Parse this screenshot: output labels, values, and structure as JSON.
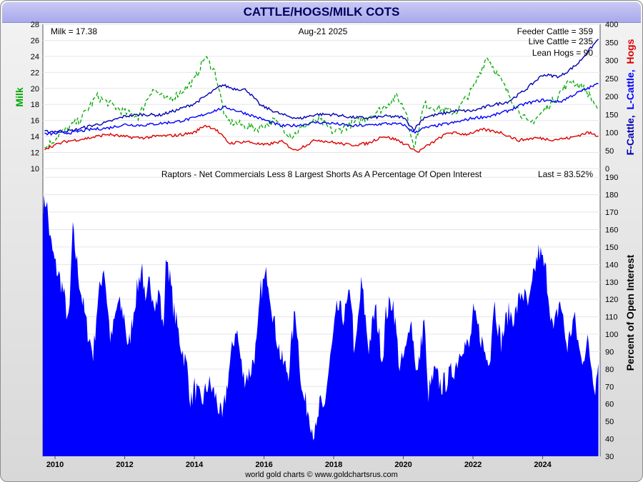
{
  "title": "CATTLE/HOGS/MILK COTS",
  "credit": "world gold charts © www.goldchartsrus.com",
  "colors": {
    "milk": "#00a800",
    "feeder_cattle": "#0000b0",
    "live_cattle": "#0000ff",
    "lean_hogs": "#dd0000",
    "cot_fill": "#0000ff",
    "title_text": "#000060"
  },
  "chart_data": [
    {
      "type": "line",
      "date_label": "Aug-21  2025",
      "readouts": {
        "milk": "Milk = 17.38",
        "feeder_cattle": "Feeder Cattle = 359",
        "live_cattle": "Live Cattle = 235",
        "lean_hogs": "Lean Hogs = 90"
      },
      "ylabel_left": "Milk",
      "ylabel_right": {
        "f_cattle": "F-Cattle,",
        "l_cattle": "L-Cattle,",
        "hogs": "Hogs"
      },
      "ylim_left": [
        10,
        28
      ],
      "yticks_left": [
        10,
        12,
        14,
        16,
        18,
        20,
        22,
        24,
        26,
        28
      ],
      "ylim_right": [
        0,
        400
      ],
      "yticks_right": [
        0,
        50,
        100,
        150,
        200,
        250,
        300,
        350,
        400
      ],
      "xlim": [
        2009.65,
        2025.65
      ],
      "series": [
        {
          "name": "Milk",
          "axis": "left",
          "color_key": "milk",
          "x": [
            2009.7,
            2010.2,
            2010.7,
            2011.2,
            2011.6,
            2012.0,
            2012.4,
            2012.8,
            2013.2,
            2013.6,
            2014.0,
            2014.3,
            2014.6,
            2014.9,
            2015.3,
            2015.8,
            2016.3,
            2016.8,
            2017.2,
            2017.6,
            2018.0,
            2018.5,
            2019.0,
            2019.4,
            2019.8,
            2020.1,
            2020.3,
            2020.6,
            2021.0,
            2021.5,
            2022.0,
            2022.4,
            2022.8,
            2023.2,
            2023.6,
            2024.0,
            2024.4,
            2024.8,
            2025.2,
            2025.6
          ],
          "values": [
            12.5,
            14.5,
            16,
            19,
            18,
            17,
            16.5,
            20,
            18.5,
            19.5,
            21,
            24,
            22,
            16,
            15.5,
            15,
            16,
            14,
            15.5,
            16,
            14.5,
            15.5,
            16.5,
            17.5,
            19,
            17,
            12.5,
            18,
            17.5,
            17,
            20,
            24,
            21,
            18,
            15.5,
            17,
            19,
            21,
            20,
            17.4
          ]
        },
        {
          "name": "Feeder Cattle",
          "axis": "right",
          "color_key": "feeder_cattle",
          "x": [
            2009.7,
            2010.5,
            2011.0,
            2011.5,
            2012.0,
            2012.5,
            2013.0,
            2013.5,
            2014.0,
            2014.5,
            2014.8,
            2015.1,
            2015.5,
            2015.9,
            2016.5,
            2017.0,
            2017.5,
            2018.0,
            2018.5,
            2019.0,
            2019.5,
            2020.0,
            2020.3,
            2020.6,
            2021.0,
            2021.5,
            2022.0,
            2022.5,
            2023.0,
            2023.5,
            2024.0,
            2024.5,
            2025.0,
            2025.6
          ],
          "values": [
            102,
            105,
            118,
            128,
            145,
            150,
            148,
            162,
            180,
            212,
            232,
            222,
            218,
            175,
            150,
            138,
            150,
            150,
            142,
            140,
            145,
            142,
            108,
            142,
            150,
            160,
            160,
            175,
            185,
            218,
            260,
            255,
            290,
            359
          ]
        },
        {
          "name": "Live Cattle",
          "axis": "right",
          "color_key": "live_cattle",
          "x": [
            2009.7,
            2010.5,
            2011.0,
            2011.5,
            2012.0,
            2012.5,
            2013.0,
            2013.5,
            2014.0,
            2014.5,
            2014.9,
            2015.5,
            2016.0,
            2016.5,
            2017.0,
            2017.5,
            2018.0,
            2018.5,
            2019.0,
            2019.5,
            2020.0,
            2020.3,
            2020.6,
            2021.0,
            2021.5,
            2022.0,
            2022.5,
            2023.0,
            2023.5,
            2024.0,
            2024.5,
            2025.0,
            2025.6
          ],
          "values": [
            95,
            100,
            108,
            112,
            122,
            120,
            125,
            130,
            140,
            158,
            170,
            152,
            135,
            118,
            120,
            128,
            125,
            118,
            120,
            125,
            122,
            100,
            112,
            120,
            128,
            140,
            145,
            160,
            180,
            190,
            185,
            210,
            235
          ]
        },
        {
          "name": "Lean Hogs",
          "axis": "right",
          "color_key": "lean_hogs",
          "x": [
            2009.7,
            2010.3,
            2011.0,
            2011.5,
            2012.0,
            2012.5,
            2013.0,
            2013.5,
            2014.0,
            2014.3,
            2014.6,
            2015.0,
            2015.5,
            2016.0,
            2016.5,
            2016.9,
            2017.5,
            2018.0,
            2018.5,
            2019.0,
            2019.4,
            2019.8,
            2020.2,
            2020.4,
            2020.8,
            2021.3,
            2021.8,
            2022.3,
            2022.8,
            2023.3,
            2023.8,
            2024.3,
            2024.8,
            2025.3,
            2025.6
          ],
          "values": [
            55,
            75,
            85,
            95,
            88,
            85,
            90,
            92,
            100,
            120,
            110,
            70,
            75,
            65,
            75,
            50,
            80,
            72,
            65,
            70,
            90,
            80,
            60,
            45,
            70,
            100,
            95,
            108,
            100,
            78,
            85,
            80,
            85,
            100,
            90
          ]
        }
      ]
    },
    {
      "type": "area",
      "title": "Raptors - Net Commercials Less 8 Largest Shorts As A Percentage Of Open Interest",
      "last_label": "Last = 83.52%",
      "ylabel": "Percent of Open Interest",
      "ylim": [
        30,
        195
      ],
      "yticks": [
        30,
        40,
        50,
        60,
        70,
        80,
        90,
        100,
        110,
        120,
        130,
        140,
        150,
        160,
        170,
        180,
        190
      ],
      "xlim": [
        2009.65,
        2025.65
      ],
      "xticks": [
        "2010",
        "2012",
        "2014",
        "2016",
        "2018",
        "2020",
        "2022",
        "2024"
      ],
      "xtick_values": [
        2010,
        2012,
        2014,
        2016,
        2018,
        2020,
        2022,
        2024
      ],
      "series": [
        {
          "name": "Raptors",
          "color_key": "cot_fill",
          "x": [
            2009.65,
            2009.75,
            2009.85,
            2010.0,
            2010.2,
            2010.4,
            2010.5,
            2010.7,
            2010.9,
            2011.1,
            2011.2,
            2011.4,
            2011.6,
            2011.8,
            2012.0,
            2012.1,
            2012.3,
            2012.5,
            2012.6,
            2012.7,
            2012.9,
            2013.0,
            2013.1,
            2013.2,
            2013.4,
            2013.6,
            2013.8,
            2013.9,
            2014.0,
            2014.2,
            2014.4,
            2014.6,
            2014.8,
            2015.0,
            2015.2,
            2015.4,
            2015.6,
            2015.8,
            2015.9,
            2016.1,
            2016.3,
            2016.5,
            2016.7,
            2016.9,
            2017.1,
            2017.3,
            2017.4,
            2017.5,
            2017.6,
            2017.7,
            2017.9,
            2018.1,
            2018.3,
            2018.5,
            2018.6,
            2018.8,
            2019.0,
            2019.2,
            2019.4,
            2019.5,
            2019.7,
            2019.9,
            2020.1,
            2020.2,
            2020.4,
            2020.6,
            2020.7,
            2020.9,
            2021.1,
            2021.3,
            2021.5,
            2021.7,
            2021.9,
            2022.0,
            2022.2,
            2022.4,
            2022.5,
            2022.6,
            2022.8,
            2023.0,
            2023.2,
            2023.4,
            2023.6,
            2023.8,
            2023.9,
            2024.1,
            2024.3,
            2024.5,
            2024.7,
            2024.9,
            2025.1,
            2025.3,
            2025.5,
            2025.6
          ],
          "values": [
            172,
            178,
            155,
            140,
            128,
            105,
            160,
            130,
            105,
            88,
            115,
            140,
            95,
            118,
            110,
            90,
            120,
            140,
            112,
            130,
            118,
            125,
            100,
            148,
            115,
            95,
            80,
            60,
            70,
            60,
            72,
            65,
            50,
            80,
            105,
            75,
            78,
            95,
            125,
            135,
            105,
            85,
            78,
            115,
            65,
            55,
            45,
            43,
            60,
            55,
            85,
            115,
            110,
            125,
            85,
            130,
            92,
            115,
            85,
            112,
            120,
            80,
            92,
            112,
            75,
            110,
            65,
            78,
            70,
            75,
            82,
            95,
            92,
            112,
            100,
            85,
            90,
            120,
            95,
            112,
            110,
            125,
            115,
            140,
            148,
            135,
            100,
            120,
            92,
            110,
            85,
            95,
            70,
            83.52
          ]
        }
      ]
    }
  ]
}
